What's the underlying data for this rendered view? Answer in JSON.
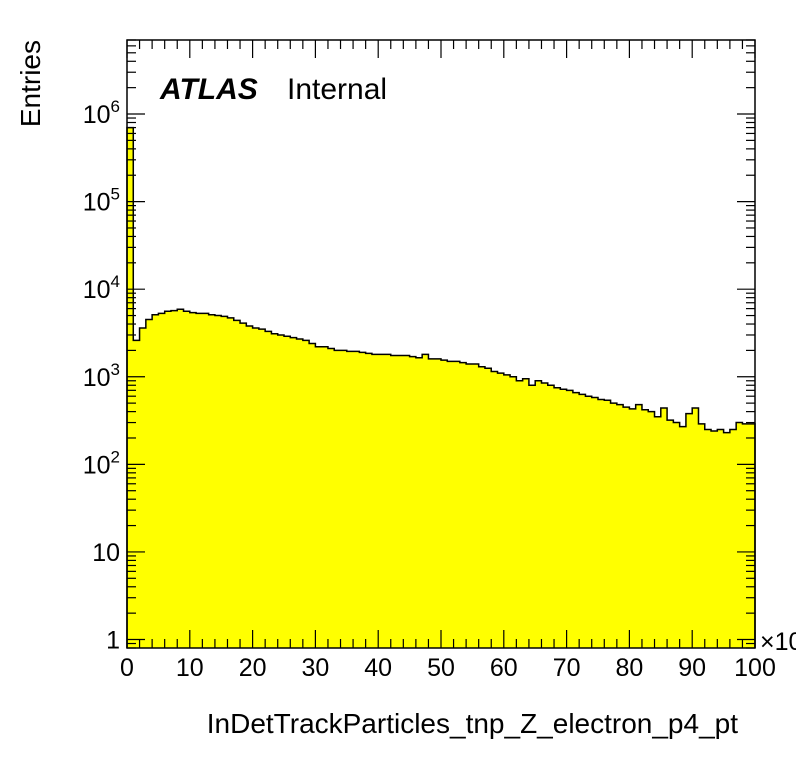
{
  "chart_data": {
    "type": "histogram",
    "xlabel": "InDetTrackParticles_tnp_Z_electron_p4_pt",
    "ylabel": "Entries",
    "x_multiplier": "×10",
    "label_main": "ATLAS",
    "label_sub": "Internal",
    "xlim": [
      0,
      100
    ],
    "ylim": [
      0.8,
      7000000
    ],
    "yscale": "log",
    "fill_color": "#ffff00",
    "line_color": "#000000",
    "x_ticks": [
      "0",
      "10",
      "20",
      "30",
      "40",
      "50",
      "60",
      "70",
      "80",
      "90",
      "100"
    ],
    "y_ticks": [
      {
        "value": 1,
        "base": "1",
        "exp": ""
      },
      {
        "value": 10,
        "base": "10",
        "exp": ""
      },
      {
        "value": 100,
        "base": "10",
        "exp": "2"
      },
      {
        "value": 1000,
        "base": "10",
        "exp": "3"
      },
      {
        "value": 10000,
        "base": "10",
        "exp": "4"
      },
      {
        "value": 100000,
        "base": "10",
        "exp": "5"
      },
      {
        "value": 1000000,
        "base": "10",
        "exp": "6"
      }
    ],
    "bin_width": 1,
    "values": [
      700000,
      2600,
      3600,
      4500,
      5100,
      5300,
      5600,
      5700,
      5900,
      5600,
      5400,
      5300,
      5300,
      5100,
      5000,
      4900,
      4700,
      4400,
      4100,
      3800,
      3600,
      3500,
      3300,
      3100,
      3000,
      2900,
      2800,
      2700,
      2600,
      2400,
      2200,
      2200,
      2100,
      2000,
      2000,
      1950,
      1950,
      1900,
      1850,
      1800,
      1800,
      1800,
      1750,
      1750,
      1750,
      1700,
      1650,
      1800,
      1600,
      1600,
      1550,
      1500,
      1500,
      1450,
      1400,
      1400,
      1300,
      1250,
      1150,
      1100,
      1050,
      1000,
      900,
      950,
      800,
      900,
      850,
      800,
      750,
      720,
      700,
      660,
      630,
      600,
      580,
      550,
      540,
      500,
      480,
      450,
      430,
      480,
      420,
      400,
      350,
      440,
      320,
      300,
      270,
      380,
      440,
      290,
      250,
      240,
      250,
      230,
      250,
      300,
      290,
      290
    ]
  }
}
